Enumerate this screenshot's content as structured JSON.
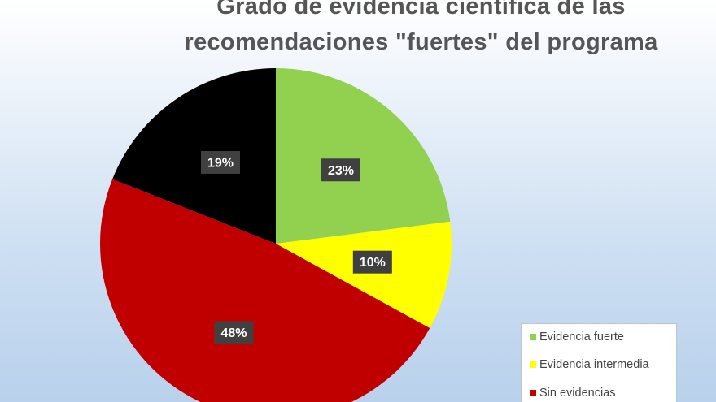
{
  "chart_data": {
    "type": "pie",
    "title": "Grado de evidencia científica de las recomendaciones \"fuertes\" del programa",
    "title_lines": [
      "Grado de evidencia científica de las",
      "recomendaciones \"fuertes\" del programa"
    ],
    "labels": [
      "Evidencia fuerte",
      "Evidencia intermedia",
      "Sin evidencias",
      ""
    ],
    "values": [
      23,
      10,
      48,
      19
    ],
    "data_labels": [
      "23%",
      "10%",
      "48%",
      "19%"
    ],
    "colors": [
      "#92d050",
      "#ffff00",
      "#c00000",
      "#000000"
    ],
    "legend_placement": "bottom-right",
    "grid": false
  },
  "legend": {
    "items": [
      {
        "label": "Evidencia fuerte",
        "color": "#92d050"
      },
      {
        "label": "Evidencia intermedia",
        "color": "#ffff00"
      },
      {
        "label": "Sin evidencias",
        "color": "#c00000"
      }
    ]
  }
}
